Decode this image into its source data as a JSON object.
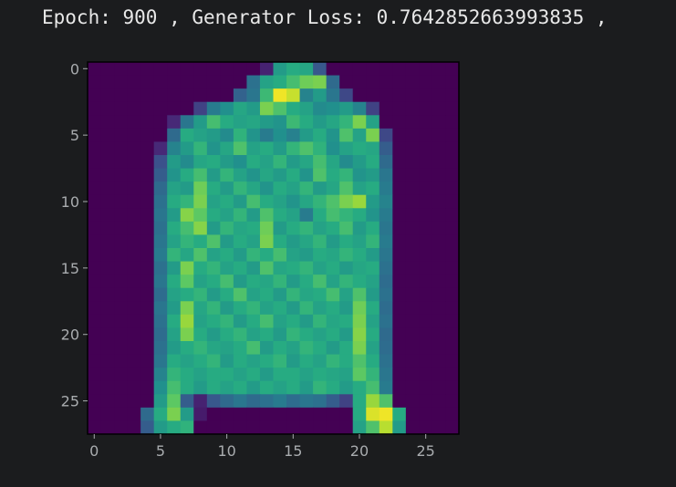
{
  "output": {
    "text": "Epoch: 900 , Generator Loss: 0.7642852663993835 ,"
  },
  "chart_data": {
    "type": "heatmap",
    "title": "",
    "xlabel": "",
    "ylabel": "",
    "colormap": "viridis",
    "rows": 28,
    "cols": 28,
    "x_ticks": [
      0,
      5,
      10,
      15,
      20,
      25
    ],
    "y_ticks": [
      0,
      5,
      10,
      15,
      20,
      25
    ],
    "value_range": [
      0,
      1
    ],
    "grid": false,
    "description_of_values": "28x28 pixel intensities (0-1) of a generated Fashion-MNIST image of a long-sleeved coat/pullover",
    "values": [
      [
        0.0,
        0.0,
        0.0,
        0.0,
        0.0,
        0.0,
        0.0,
        0.0,
        0.0,
        0.0,
        0.0,
        0.0,
        0.0,
        0.1,
        0.55,
        0.62,
        0.6,
        0.28,
        0.0,
        0.0,
        0.0,
        0.0,
        0.0,
        0.0,
        0.0,
        0.0,
        0.0,
        0.0
      ],
      [
        0.0,
        0.0,
        0.0,
        0.0,
        0.0,
        0.0,
        0.0,
        0.0,
        0.0,
        0.0,
        0.0,
        0.0,
        0.38,
        0.58,
        0.62,
        0.7,
        0.78,
        0.8,
        0.35,
        0.0,
        0.0,
        0.0,
        0.0,
        0.0,
        0.0,
        0.0,
        0.0,
        0.0
      ],
      [
        0.0,
        0.0,
        0.0,
        0.0,
        0.0,
        0.0,
        0.0,
        0.0,
        0.0,
        0.0,
        0.0,
        0.32,
        0.4,
        0.68,
        0.98,
        0.92,
        0.45,
        0.55,
        0.4,
        0.22,
        0.0,
        0.0,
        0.0,
        0.0,
        0.0,
        0.0,
        0.0,
        0.0
      ],
      [
        0.0,
        0.0,
        0.0,
        0.0,
        0.0,
        0.0,
        0.0,
        0.0,
        0.2,
        0.42,
        0.5,
        0.6,
        0.55,
        0.8,
        0.72,
        0.62,
        0.58,
        0.48,
        0.5,
        0.55,
        0.45,
        0.2,
        0.0,
        0.0,
        0.0,
        0.0,
        0.0,
        0.0
      ],
      [
        0.0,
        0.0,
        0.0,
        0.0,
        0.0,
        0.0,
        0.12,
        0.4,
        0.55,
        0.7,
        0.62,
        0.58,
        0.6,
        0.55,
        0.52,
        0.68,
        0.62,
        0.55,
        0.6,
        0.66,
        0.8,
        0.58,
        0.0,
        0.0,
        0.0,
        0.0,
        0.0,
        0.0
      ],
      [
        0.0,
        0.0,
        0.0,
        0.0,
        0.0,
        0.0,
        0.35,
        0.62,
        0.58,
        0.55,
        0.48,
        0.65,
        0.52,
        0.42,
        0.5,
        0.44,
        0.55,
        0.62,
        0.52,
        0.72,
        0.58,
        0.8,
        0.22,
        0.0,
        0.0,
        0.0,
        0.0,
        0.0
      ],
      [
        0.0,
        0.0,
        0.0,
        0.0,
        0.0,
        0.12,
        0.45,
        0.55,
        0.66,
        0.52,
        0.6,
        0.72,
        0.58,
        0.62,
        0.55,
        0.66,
        0.72,
        0.65,
        0.5,
        0.58,
        0.62,
        0.6,
        0.3,
        0.0,
        0.0,
        0.0,
        0.0,
        0.0
      ],
      [
        0.0,
        0.0,
        0.0,
        0.0,
        0.0,
        0.25,
        0.55,
        0.48,
        0.6,
        0.62,
        0.55,
        0.5,
        0.62,
        0.58,
        0.66,
        0.55,
        0.6,
        0.7,
        0.6,
        0.48,
        0.55,
        0.62,
        0.35,
        0.0,
        0.0,
        0.0,
        0.0,
        0.0
      ],
      [
        0.0,
        0.0,
        0.0,
        0.0,
        0.0,
        0.3,
        0.52,
        0.62,
        0.7,
        0.55,
        0.66,
        0.58,
        0.52,
        0.6,
        0.55,
        0.62,
        0.52,
        0.72,
        0.62,
        0.66,
        0.52,
        0.55,
        0.4,
        0.0,
        0.0,
        0.0,
        0.0,
        0.0
      ],
      [
        0.0,
        0.0,
        0.0,
        0.0,
        0.0,
        0.35,
        0.58,
        0.55,
        0.78,
        0.62,
        0.55,
        0.66,
        0.6,
        0.52,
        0.62,
        0.58,
        0.66,
        0.55,
        0.6,
        0.72,
        0.58,
        0.62,
        0.42,
        0.0,
        0.0,
        0.0,
        0.0,
        0.0
      ],
      [
        0.0,
        0.0,
        0.0,
        0.0,
        0.0,
        0.38,
        0.62,
        0.66,
        0.8,
        0.58,
        0.62,
        0.55,
        0.7,
        0.62,
        0.58,
        0.52,
        0.6,
        0.66,
        0.72,
        0.8,
        0.85,
        0.55,
        0.45,
        0.0,
        0.0,
        0.0,
        0.0,
        0.0
      ],
      [
        0.0,
        0.0,
        0.0,
        0.0,
        0.0,
        0.4,
        0.55,
        0.82,
        0.75,
        0.62,
        0.58,
        0.66,
        0.55,
        0.72,
        0.62,
        0.58,
        0.42,
        0.62,
        0.7,
        0.66,
        0.62,
        0.52,
        0.42,
        0.0,
        0.0,
        0.0,
        0.0,
        0.0
      ],
      [
        0.0,
        0.0,
        0.0,
        0.0,
        0.0,
        0.38,
        0.62,
        0.7,
        0.82,
        0.55,
        0.66,
        0.6,
        0.62,
        0.78,
        0.55,
        0.62,
        0.66,
        0.58,
        0.62,
        0.7,
        0.55,
        0.62,
        0.4,
        0.0,
        0.0,
        0.0,
        0.0,
        0.0
      ],
      [
        0.0,
        0.0,
        0.0,
        0.0,
        0.0,
        0.4,
        0.58,
        0.66,
        0.62,
        0.72,
        0.55,
        0.62,
        0.58,
        0.8,
        0.62,
        0.55,
        0.6,
        0.66,
        0.55,
        0.62,
        0.58,
        0.66,
        0.42,
        0.0,
        0.0,
        0.0,
        0.0,
        0.0
      ],
      [
        0.0,
        0.0,
        0.0,
        0.0,
        0.0,
        0.42,
        0.66,
        0.6,
        0.72,
        0.58,
        0.62,
        0.55,
        0.66,
        0.62,
        0.7,
        0.58,
        0.55,
        0.62,
        0.6,
        0.66,
        0.62,
        0.55,
        0.4,
        0.0,
        0.0,
        0.0,
        0.0,
        0.0
      ],
      [
        0.0,
        0.0,
        0.0,
        0.0,
        0.0,
        0.38,
        0.55,
        0.8,
        0.62,
        0.66,
        0.58,
        0.62,
        0.55,
        0.72,
        0.6,
        0.62,
        0.66,
        0.58,
        0.62,
        0.55,
        0.6,
        0.62,
        0.38,
        0.0,
        0.0,
        0.0,
        0.0,
        0.0
      ],
      [
        0.0,
        0.0,
        0.0,
        0.0,
        0.0,
        0.4,
        0.62,
        0.75,
        0.58,
        0.62,
        0.7,
        0.55,
        0.62,
        0.6,
        0.66,
        0.55,
        0.62,
        0.7,
        0.58,
        0.66,
        0.62,
        0.58,
        0.36,
        0.0,
        0.0,
        0.0,
        0.0,
        0.0
      ],
      [
        0.0,
        0.0,
        0.0,
        0.0,
        0.0,
        0.36,
        0.58,
        0.62,
        0.66,
        0.55,
        0.62,
        0.72,
        0.58,
        0.62,
        0.55,
        0.66,
        0.6,
        0.62,
        0.7,
        0.58,
        0.72,
        0.55,
        0.38,
        0.0,
        0.0,
        0.0,
        0.0,
        0.0
      ],
      [
        0.0,
        0.0,
        0.0,
        0.0,
        0.0,
        0.4,
        0.55,
        0.8,
        0.6,
        0.66,
        0.55,
        0.62,
        0.66,
        0.58,
        0.62,
        0.55,
        0.66,
        0.58,
        0.62,
        0.55,
        0.78,
        0.62,
        0.36,
        0.0,
        0.0,
        0.0,
        0.0,
        0.0
      ],
      [
        0.0,
        0.0,
        0.0,
        0.0,
        0.0,
        0.38,
        0.62,
        0.85,
        0.58,
        0.62,
        0.66,
        0.55,
        0.62,
        0.7,
        0.58,
        0.62,
        0.55,
        0.66,
        0.6,
        0.62,
        0.8,
        0.58,
        0.38,
        0.0,
        0.0,
        0.0,
        0.0,
        0.0
      ],
      [
        0.0,
        0.0,
        0.0,
        0.0,
        0.0,
        0.36,
        0.58,
        0.8,
        0.62,
        0.55,
        0.62,
        0.66,
        0.58,
        0.62,
        0.55,
        0.66,
        0.62,
        0.58,
        0.62,
        0.55,
        0.82,
        0.62,
        0.35,
        0.0,
        0.0,
        0.0,
        0.0,
        0.0
      ],
      [
        0.0,
        0.0,
        0.0,
        0.0,
        0.0,
        0.38,
        0.55,
        0.62,
        0.66,
        0.6,
        0.58,
        0.62,
        0.7,
        0.55,
        0.62,
        0.58,
        0.66,
        0.62,
        0.55,
        0.62,
        0.8,
        0.58,
        0.36,
        0.0,
        0.0,
        0.0,
        0.0,
        0.0
      ],
      [
        0.0,
        0.0,
        0.0,
        0.0,
        0.0,
        0.4,
        0.62,
        0.58,
        0.62,
        0.66,
        0.55,
        0.62,
        0.58,
        0.62,
        0.66,
        0.55,
        0.62,
        0.58,
        0.66,
        0.62,
        0.72,
        0.62,
        0.38,
        0.0,
        0.0,
        0.0,
        0.0,
        0.0
      ],
      [
        0.0,
        0.0,
        0.0,
        0.0,
        0.0,
        0.45,
        0.66,
        0.62,
        0.58,
        0.62,
        0.62,
        0.58,
        0.62,
        0.55,
        0.62,
        0.62,
        0.58,
        0.62,
        0.6,
        0.58,
        0.75,
        0.66,
        0.4,
        0.0,
        0.0,
        0.0,
        0.0,
        0.0
      ],
      [
        0.0,
        0.0,
        0.0,
        0.0,
        0.0,
        0.5,
        0.7,
        0.62,
        0.55,
        0.62,
        0.58,
        0.62,
        0.55,
        0.62,
        0.58,
        0.62,
        0.55,
        0.66,
        0.62,
        0.55,
        0.62,
        0.7,
        0.42,
        0.0,
        0.0,
        0.0,
        0.0,
        0.0
      ],
      [
        0.0,
        0.0,
        0.0,
        0.0,
        0.0,
        0.55,
        0.75,
        0.3,
        0.1,
        0.28,
        0.35,
        0.4,
        0.35,
        0.38,
        0.42,
        0.36,
        0.4,
        0.38,
        0.3,
        0.2,
        0.62,
        0.85,
        0.72,
        0.0,
        0.0,
        0.0,
        0.0,
        0.0
      ],
      [
        0.0,
        0.0,
        0.0,
        0.0,
        0.35,
        0.62,
        0.8,
        0.55,
        0.08,
        0.0,
        0.0,
        0.0,
        0.0,
        0.0,
        0.0,
        0.0,
        0.0,
        0.0,
        0.0,
        0.0,
        0.62,
        0.95,
        0.98,
        0.62,
        0.0,
        0.0,
        0.0,
        0.0
      ],
      [
        0.0,
        0.0,
        0.0,
        0.0,
        0.3,
        0.55,
        0.62,
        0.65,
        0.0,
        0.0,
        0.0,
        0.0,
        0.0,
        0.0,
        0.0,
        0.0,
        0.0,
        0.0,
        0.0,
        0.0,
        0.58,
        0.72,
        0.9,
        0.55,
        0.0,
        0.0,
        0.0,
        0.0
      ]
    ]
  }
}
